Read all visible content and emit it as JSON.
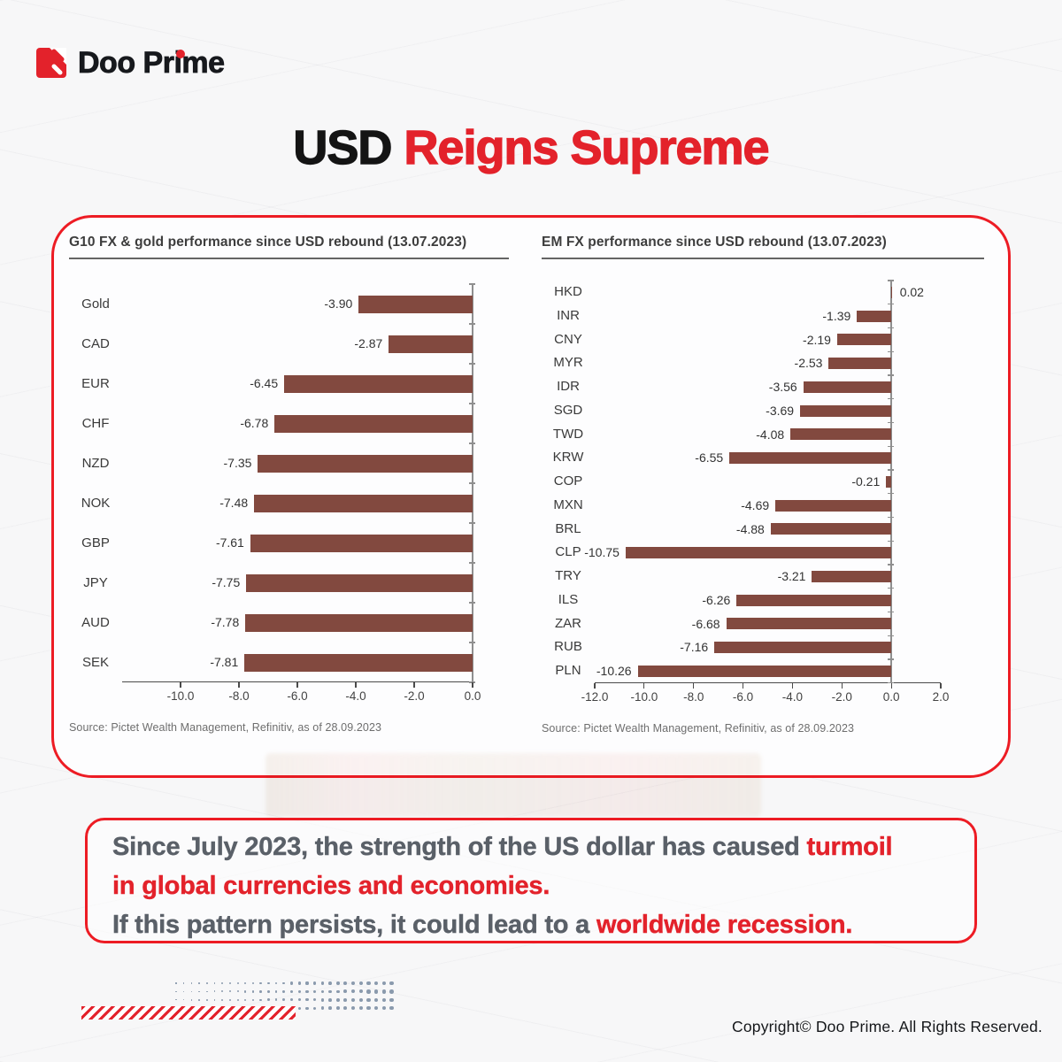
{
  "colors": {
    "brand_red": "#E3222B",
    "panel_border_red": "#ED1C24",
    "bar_maroon": "#82493F",
    "summary_gray": "#5A6068",
    "dots_blue_gray": "#8A9AAD"
  },
  "header": {
    "logo_text": "Doo Prime"
  },
  "title": {
    "black_part": "USD ",
    "red_part": "Reigns Supreme"
  },
  "chart_data": [
    {
      "type": "bar",
      "orientation": "horizontal",
      "title": "G10 FX & gold performance since USD rebound (13.07.2023)",
      "categories": [
        "Gold",
        "CAD",
        "EUR",
        "CHF",
        "NZD",
        "NOK",
        "GBP",
        "JPY",
        "AUD",
        "SEK"
      ],
      "values": [
        -3.9,
        -2.87,
        -6.45,
        -6.78,
        -7.35,
        -7.48,
        -7.61,
        -7.75,
        -7.78,
        -7.81
      ],
      "value_labels": [
        "-3.90",
        "-2.87",
        "-6.45",
        "-6.78",
        "-7.35",
        "-7.48",
        "-7.61",
        "-7.75",
        "-7.78",
        "-7.81"
      ],
      "xlim": [
        -12.0,
        0.0
      ],
      "xticks": [
        -10.0,
        -8.0,
        -6.0,
        -4.0,
        -2.0,
        0.0
      ],
      "xtick_labels": [
        "-10.0",
        "-8.0",
        "-6.0",
        "-4.0",
        "-2.0",
        "0.0"
      ],
      "xlabel": "",
      "ylabel": "",
      "grid": false,
      "legend": "none",
      "bar_color": "#82493F",
      "source": "Source: Pictet Wealth Management, Refinitiv, as of 28.09.2023"
    },
    {
      "type": "bar",
      "orientation": "horizontal",
      "title": "EM FX performance since USD rebound (13.07.2023)",
      "categories": [
        "HKD",
        "INR",
        "CNY",
        "MYR",
        "IDR",
        "SGD",
        "TWD",
        "KRW",
        "COP",
        "MXN",
        "BRL",
        "CLP",
        "TRY",
        "ILS",
        "ZAR",
        "RUB",
        "PLN"
      ],
      "values": [
        0.02,
        -1.39,
        -2.19,
        -2.53,
        -3.56,
        -3.69,
        -4.08,
        -6.55,
        -0.21,
        -4.69,
        -4.88,
        -10.75,
        -3.21,
        -6.26,
        -6.68,
        -7.16,
        -10.26
      ],
      "value_labels": [
        "0.02",
        "-1.39",
        "-2.19",
        "-2.53",
        "-3.56",
        "-3.69",
        "-4.08",
        "-6.55",
        "-0.21",
        "-4.69",
        "-4.88",
        "-10.75",
        "-3.21",
        "-6.26",
        "-6.68",
        "-7.16",
        "-10.26"
      ],
      "xlim": [
        -12.0,
        2.0
      ],
      "xticks": [
        -12.0,
        -10.0,
        -8.0,
        -6.0,
        -4.0,
        -2.0,
        0.0,
        2.0
      ],
      "xtick_labels": [
        "-12.0",
        "-10.0",
        "-8.0",
        "-6.0",
        "-4.0",
        "-2.0",
        "0.0",
        "2.0"
      ],
      "xlabel": "",
      "ylabel": "",
      "grid": false,
      "legend": "none",
      "bar_color": "#82493F",
      "source": "Source: Pictet Wealth Management, Refinitiv, as of 28.09.2023"
    }
  ],
  "summary": {
    "lines": [
      {
        "parts": [
          {
            "text": "Since July 2023, the strength of the US dollar has caused ",
            "red": false
          },
          {
            "text": "turmoil",
            "red": true
          }
        ]
      },
      {
        "parts": [
          {
            "text": "in global currencies and economies.",
            "red": true
          }
        ]
      },
      {
        "parts": [
          {
            "text": "If this pattern persists, it could lead to a ",
            "red": false
          },
          {
            "text": "worldwide recession.",
            "red": true
          }
        ]
      }
    ]
  },
  "footer": {
    "copyright": "Copyright© Doo Prime. All Rights Reserved."
  }
}
